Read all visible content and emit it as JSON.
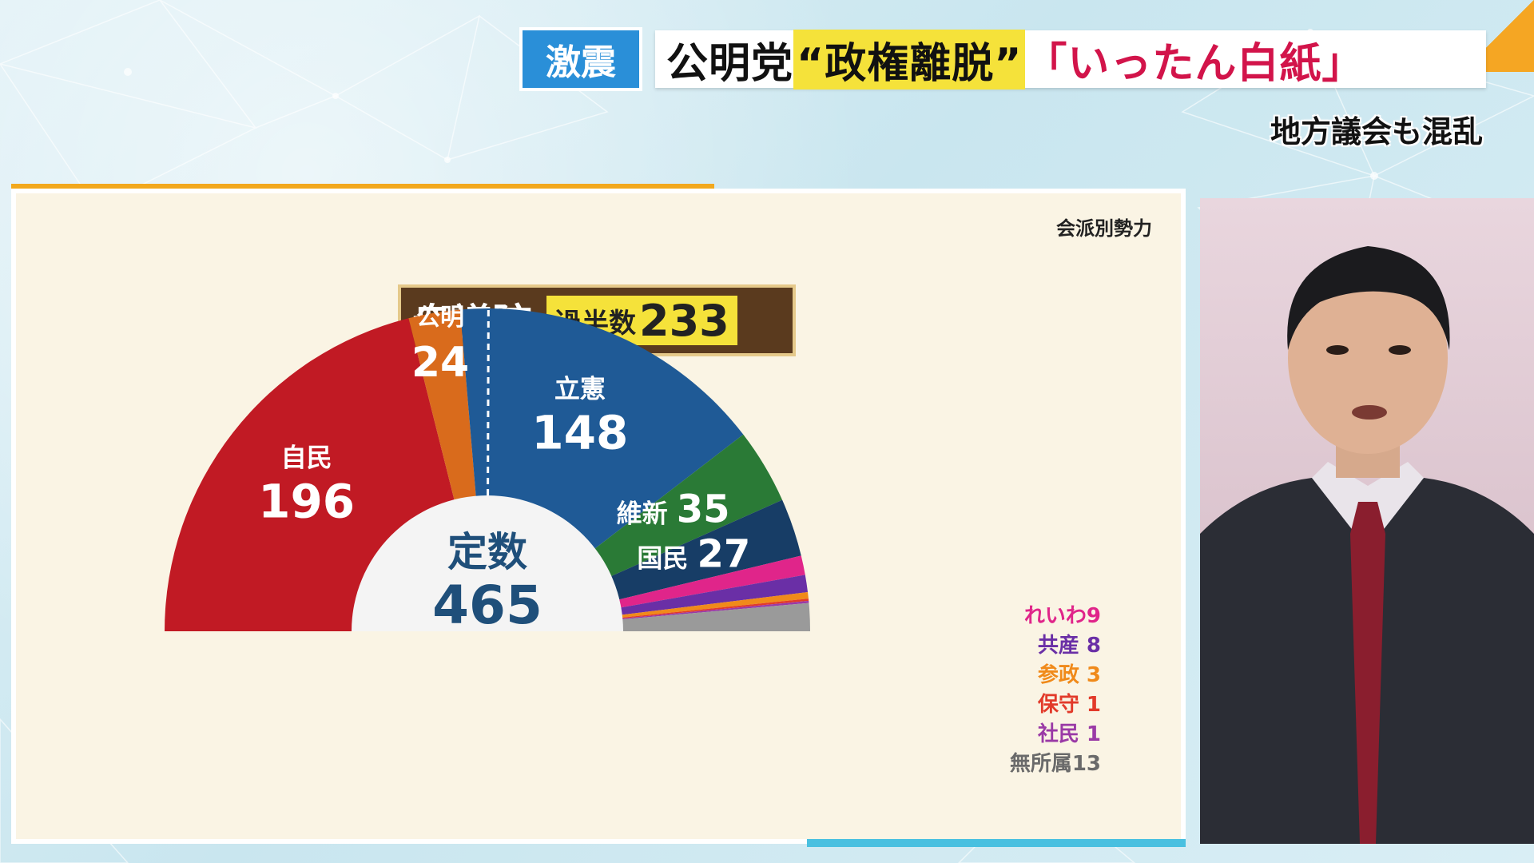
{
  "headline": {
    "tag": "激震",
    "part1": "公明党",
    "part2": "“政権離脱”",
    "part3": "「いったん白紙」",
    "sub": "地方議会も混乱",
    "colors": {
      "tag_bg": "#2a8fd8",
      "highlight": "#f5e23a",
      "emphasis": "#d2144a"
    }
  },
  "panel": {
    "caption": "会派別勢力",
    "house": "衆議院",
    "majority_label": "過半数",
    "majority_value": "233",
    "total_label": "定数",
    "total_value": "465"
  },
  "chart_data": {
    "type": "pie",
    "shape": "semicircle",
    "total": 465,
    "majority": 233,
    "series": [
      {
        "name": "自民",
        "value": 196,
        "color": "#c11a24"
      },
      {
        "name": "公明",
        "value": 24,
        "color": "#d96b1c"
      },
      {
        "name": "立憲",
        "value": 148,
        "color": "#1f5a96"
      },
      {
        "name": "維新",
        "value": 35,
        "color": "#2a7a36"
      },
      {
        "name": "国民",
        "value": 27,
        "color": "#173d66"
      },
      {
        "name": "れいわ",
        "value": 9,
        "color": "#e0258a"
      },
      {
        "name": "共産",
        "value": 8,
        "color": "#6a2fa6"
      },
      {
        "name": "参政",
        "value": 3,
        "color": "#f08a1a"
      },
      {
        "name": "保守",
        "value": 1,
        "color": "#e23a2a"
      },
      {
        "name": "社民",
        "value": 1,
        "color": "#9a3aa6"
      },
      {
        "name": "無所属",
        "value": 13,
        "color": "#9a9a9a"
      }
    ]
  }
}
